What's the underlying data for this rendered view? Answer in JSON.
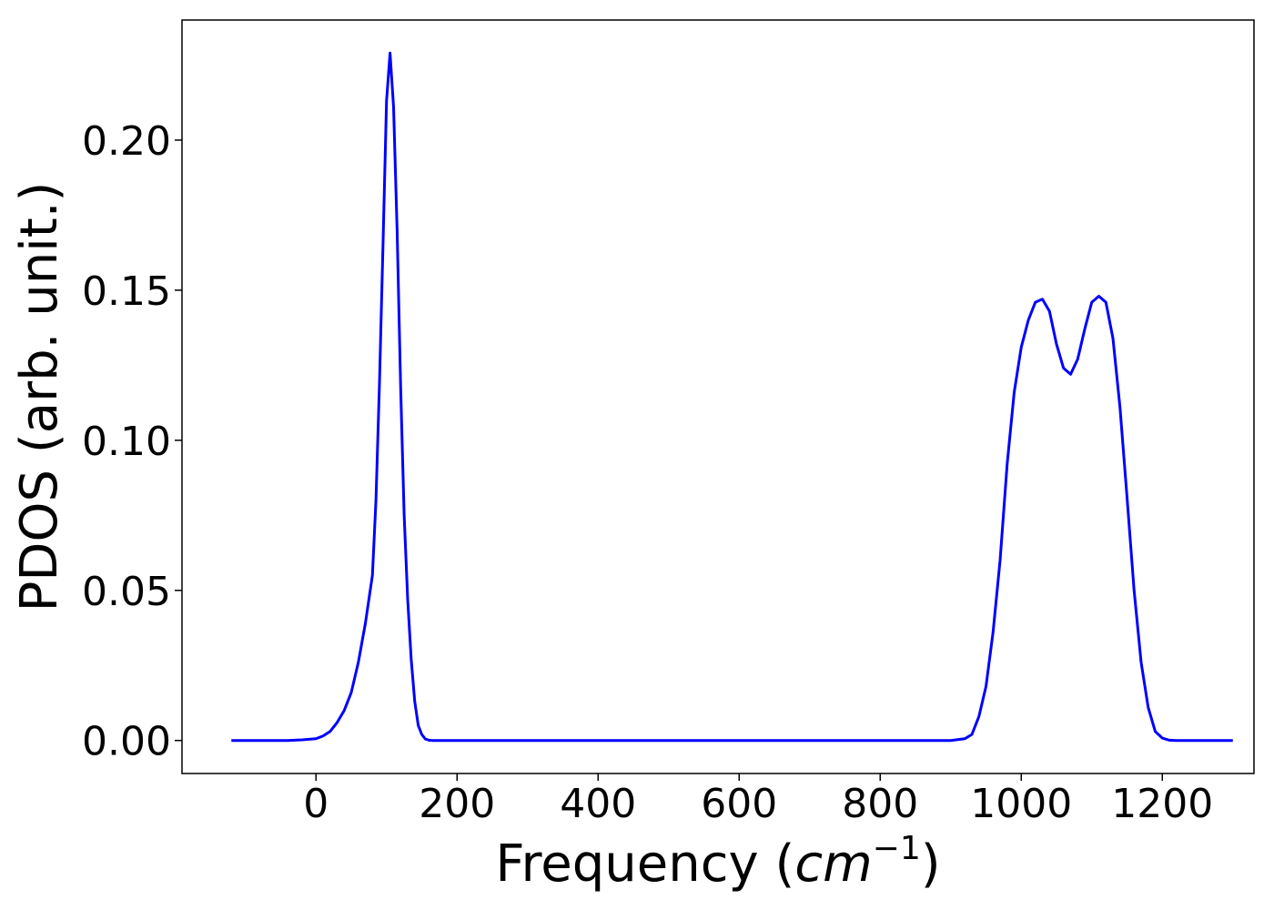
{
  "chart_data": {
    "type": "line",
    "title": "",
    "xlabel_prefix": "Frequency (",
    "xlabel_math": "cm",
    "xlabel_sup": "−1",
    "xlabel_suffix": ")",
    "ylabel": "PDOS (arb. unit.)",
    "xlim": [
      -190,
      1330
    ],
    "ylim": [
      -0.011,
      0.24
    ],
    "xticks": [
      0,
      200,
      400,
      600,
      800,
      1000,
      1200
    ],
    "xtick_labels": [
      "0",
      "200",
      "400",
      "600",
      "800",
      "1000",
      "1200"
    ],
    "yticks": [
      0.0,
      0.05,
      0.1,
      0.15,
      0.2
    ],
    "ytick_labels": [
      "0.00",
      "0.05",
      "0.10",
      "0.15",
      "0.20"
    ],
    "grid": false,
    "legend": "none",
    "series": [
      {
        "color": "#0000ff",
        "x": [
          -120,
          -80,
          -40,
          -20,
          0,
          10,
          20,
          30,
          40,
          50,
          60,
          70,
          80,
          85,
          90,
          95,
          100,
          105,
          110,
          115,
          120,
          125,
          130,
          135,
          140,
          145,
          150,
          155,
          160,
          165,
          170,
          180,
          190,
          200,
          300,
          400,
          500,
          600,
          700,
          800,
          900,
          920,
          930,
          940,
          950,
          960,
          970,
          980,
          990,
          1000,
          1010,
          1020,
          1030,
          1040,
          1050,
          1060,
          1070,
          1080,
          1090,
          1100,
          1110,
          1120,
          1130,
          1140,
          1150,
          1160,
          1170,
          1180,
          1190,
          1200,
          1210,
          1220,
          1240,
          1270,
          1300
        ],
        "y": [
          0.0,
          0.0,
          0.0,
          0.0002,
          0.0006,
          0.0015,
          0.003,
          0.006,
          0.01,
          0.016,
          0.026,
          0.039,
          0.055,
          0.08,
          0.119,
          0.165,
          0.213,
          0.229,
          0.211,
          0.17,
          0.118,
          0.075,
          0.047,
          0.027,
          0.013,
          0.005,
          0.002,
          0.0005,
          0.0001,
          0.0,
          0.0,
          0.0,
          0.0,
          0.0,
          0.0,
          0.0,
          0.0,
          0.0,
          0.0,
          0.0,
          0.0,
          0.0006,
          0.002,
          0.008,
          0.018,
          0.036,
          0.06,
          0.092,
          0.116,
          0.131,
          0.14,
          0.146,
          0.147,
          0.143,
          0.132,
          0.124,
          0.122,
          0.127,
          0.137,
          0.146,
          0.148,
          0.146,
          0.134,
          0.111,
          0.081,
          0.05,
          0.026,
          0.011,
          0.003,
          0.0008,
          0.0001,
          0.0,
          0.0,
          0.0,
          0.0
        ]
      }
    ]
  }
}
